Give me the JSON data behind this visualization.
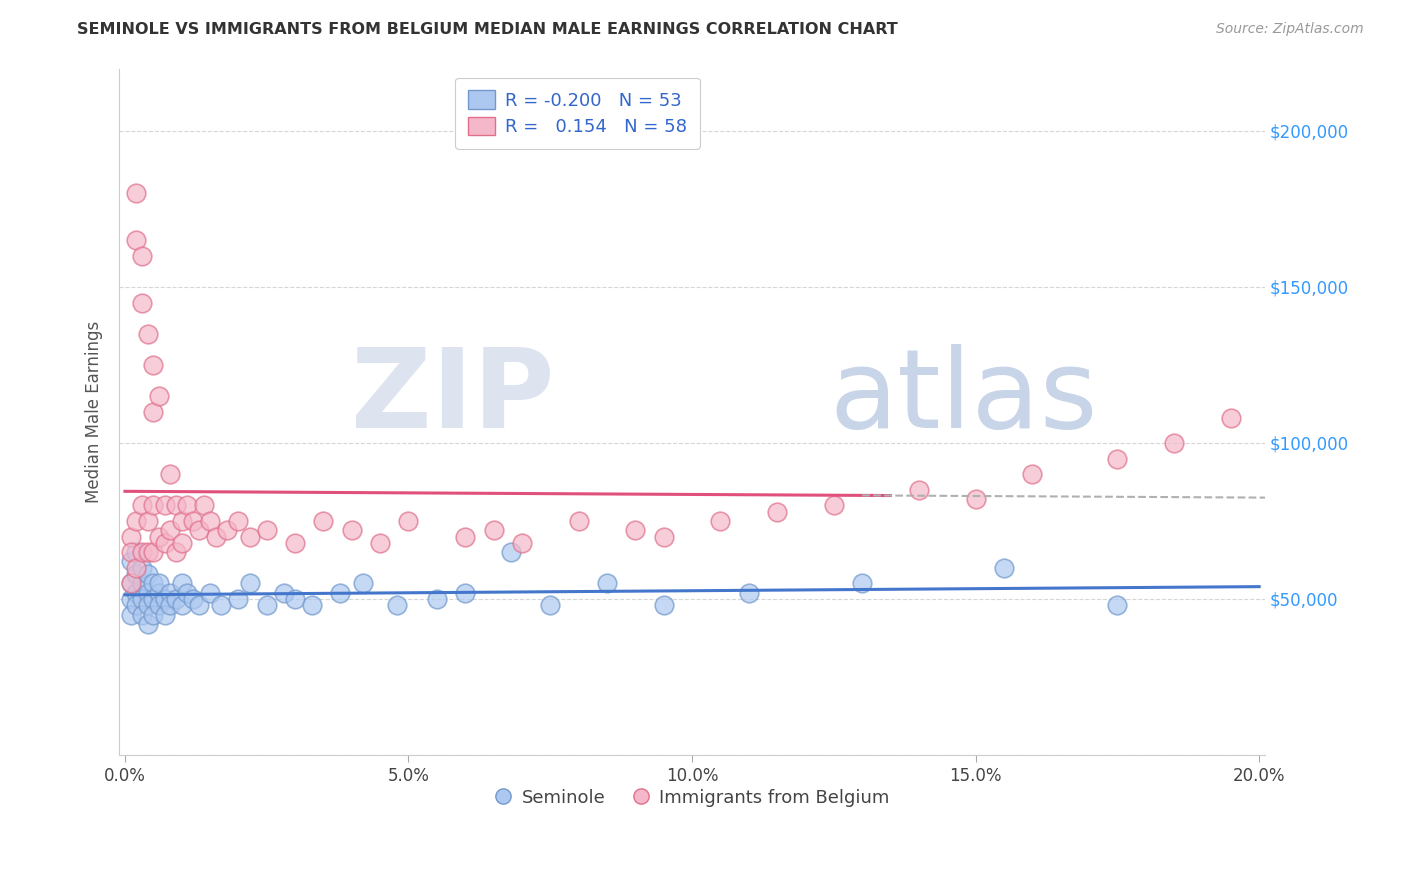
{
  "title": "SEMINOLE VS IMMIGRANTS FROM BELGIUM MEDIAN MALE EARNINGS CORRELATION CHART",
  "source": "Source: ZipAtlas.com",
  "xlabel_seminole": "Seminole",
  "xlabel_belgium": "Immigrants from Belgium",
  "ylabel": "Median Male Earnings",
  "xlim": [
    -0.001,
    0.201
  ],
  "ylim": [
    0,
    220000
  ],
  "yticks": [
    0,
    50000,
    100000,
    150000,
    200000
  ],
  "ytick_labels": [
    "",
    "$50,000",
    "$100,000",
    "$150,000",
    "$200,000"
  ],
  "xticks": [
    0.0,
    0.05,
    0.1,
    0.15,
    0.2
  ],
  "xtick_labels": [
    "0.0%",
    "5.0%",
    "10.0%",
    "15.0%",
    "20.0%"
  ],
  "seminole_color": "#adc8f0",
  "belgium_color": "#f5b8cb",
  "seminole_edge": "#7299cc",
  "belgium_edge": "#e0708a",
  "line_seminole_color": "#4477cc",
  "line_belgium_color": "#e0507a",
  "watermark_zip_color": "#d0d8ee",
  "watermark_atlas_color": "#c0cce0",
  "legend_R_seminole": "-0.200",
  "legend_N_seminole": "53",
  "legend_R_belgium": "0.154",
  "legend_N_belgium": "58",
  "seminole_x": [
    0.001,
    0.001,
    0.001,
    0.001,
    0.002,
    0.002,
    0.002,
    0.002,
    0.003,
    0.003,
    0.003,
    0.003,
    0.004,
    0.004,
    0.004,
    0.004,
    0.005,
    0.005,
    0.005,
    0.006,
    0.006,
    0.006,
    0.007,
    0.007,
    0.008,
    0.008,
    0.009,
    0.01,
    0.01,
    0.011,
    0.012,
    0.013,
    0.015,
    0.017,
    0.02,
    0.022,
    0.025,
    0.028,
    0.03,
    0.033,
    0.038,
    0.042,
    0.048,
    0.055,
    0.06,
    0.068,
    0.075,
    0.085,
    0.095,
    0.11,
    0.13,
    0.155,
    0.175
  ],
  "seminole_y": [
    55000,
    50000,
    62000,
    45000,
    58000,
    52000,
    48000,
    65000,
    55000,
    50000,
    45000,
    60000,
    52000,
    48000,
    58000,
    42000,
    55000,
    50000,
    45000,
    52000,
    48000,
    55000,
    50000,
    45000,
    52000,
    48000,
    50000,
    55000,
    48000,
    52000,
    50000,
    48000,
    52000,
    48000,
    50000,
    55000,
    48000,
    52000,
    50000,
    48000,
    52000,
    55000,
    48000,
    50000,
    52000,
    65000,
    48000,
    55000,
    48000,
    52000,
    55000,
    60000,
    48000
  ],
  "belgium_x": [
    0.001,
    0.001,
    0.001,
    0.002,
    0.002,
    0.002,
    0.002,
    0.003,
    0.003,
    0.003,
    0.003,
    0.004,
    0.004,
    0.004,
    0.005,
    0.005,
    0.005,
    0.005,
    0.006,
    0.006,
    0.007,
    0.007,
    0.008,
    0.008,
    0.009,
    0.009,
    0.01,
    0.01,
    0.011,
    0.012,
    0.013,
    0.014,
    0.015,
    0.016,
    0.018,
    0.02,
    0.022,
    0.025,
    0.03,
    0.035,
    0.04,
    0.045,
    0.05,
    0.06,
    0.065,
    0.07,
    0.08,
    0.09,
    0.095,
    0.105,
    0.115,
    0.125,
    0.14,
    0.15,
    0.16,
    0.175,
    0.185,
    0.195
  ],
  "belgium_y": [
    70000,
    65000,
    55000,
    180000,
    165000,
    75000,
    60000,
    160000,
    145000,
    80000,
    65000,
    135000,
    75000,
    65000,
    125000,
    110000,
    80000,
    65000,
    115000,
    70000,
    80000,
    68000,
    90000,
    72000,
    80000,
    65000,
    75000,
    68000,
    80000,
    75000,
    72000,
    80000,
    75000,
    70000,
    72000,
    75000,
    70000,
    72000,
    68000,
    75000,
    72000,
    68000,
    75000,
    70000,
    72000,
    68000,
    75000,
    72000,
    70000,
    75000,
    78000,
    80000,
    85000,
    82000,
    90000,
    95000,
    100000,
    108000
  ]
}
